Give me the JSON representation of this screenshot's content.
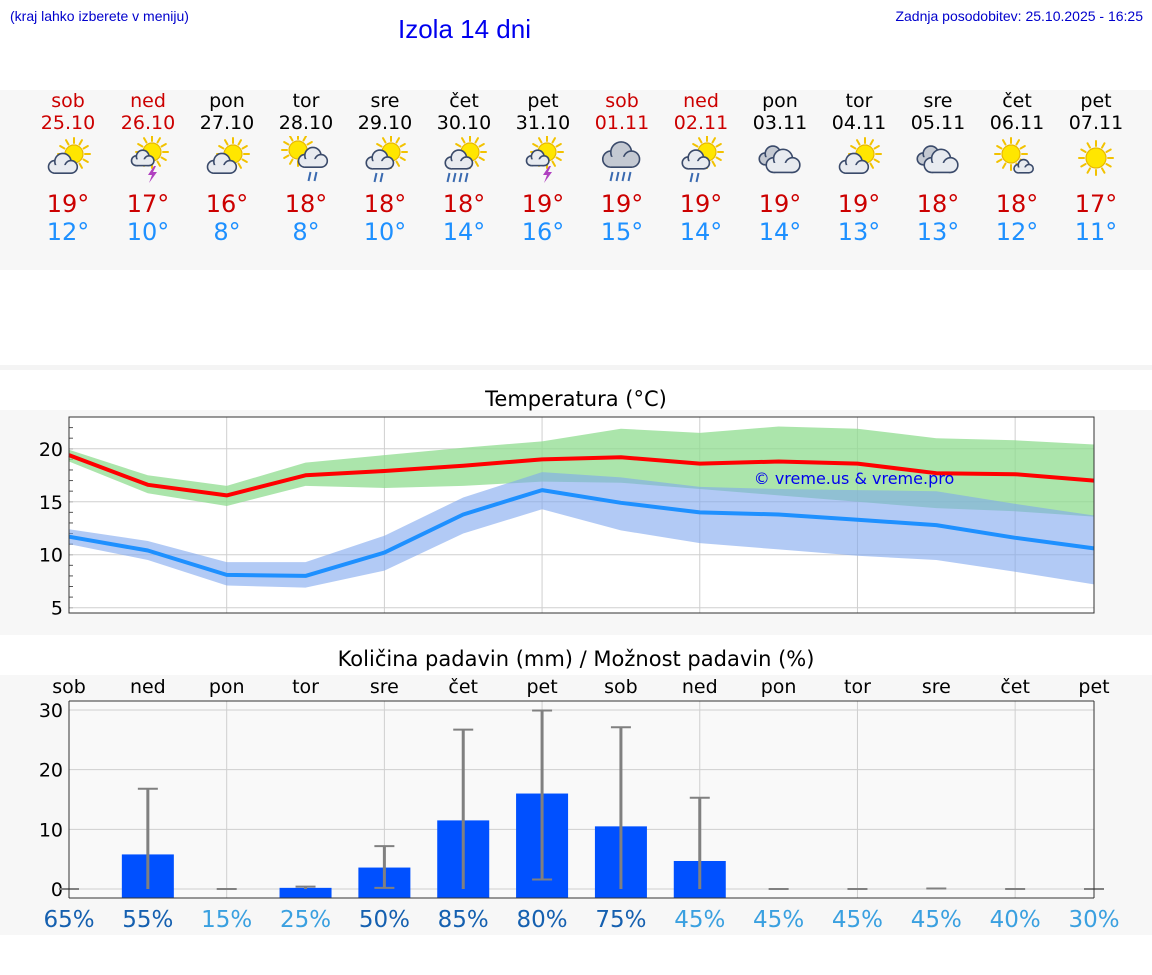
{
  "header": {
    "menu_hint": "(kraj lahko izberete v meniju)",
    "title": "Izola 14 dni",
    "updated": "Zadnja posodobitev: 25.10.2025 - 16:25"
  },
  "days": [
    {
      "name": "sob",
      "date": "25.10",
      "weekend": true,
      "icon": "partly-cloudy-sun-icon",
      "tmax": "19°",
      "tmin": "12°"
    },
    {
      "name": "ned",
      "date": "26.10",
      "weekend": true,
      "icon": "sun-thunderstorm-icon",
      "tmax": "17°",
      "tmin": "10°"
    },
    {
      "name": "pon",
      "date": "27.10",
      "weekend": false,
      "icon": "partly-cloudy-sun-icon",
      "tmax": "16°",
      "tmin": "8°"
    },
    {
      "name": "tor",
      "date": "28.10",
      "weekend": false,
      "icon": "sun-rain-cloud-icon",
      "tmax": "18°",
      "tmin": "8°"
    },
    {
      "name": "sre",
      "date": "29.10",
      "weekend": false,
      "icon": "sun-light-rain-icon",
      "tmax": "18°",
      "tmin": "10°"
    },
    {
      "name": "čet",
      "date": "30.10",
      "weekend": false,
      "icon": "sun-heavy-rain-icon",
      "tmax": "18°",
      "tmin": "14°"
    },
    {
      "name": "pet",
      "date": "31.10",
      "weekend": false,
      "icon": "sun-thunderstorm-icon",
      "tmax": "19°",
      "tmin": "16°"
    },
    {
      "name": "sob",
      "date": "01.11",
      "weekend": true,
      "icon": "heavy-rain-cloud-icon",
      "tmax": "19°",
      "tmin": "15°"
    },
    {
      "name": "ned",
      "date": "02.11",
      "weekend": true,
      "icon": "sun-light-rain-icon",
      "tmax": "19°",
      "tmin": "14°"
    },
    {
      "name": "pon",
      "date": "03.11",
      "weekend": false,
      "icon": "cloudy-icon",
      "tmax": "19°",
      "tmin": "14°"
    },
    {
      "name": "tor",
      "date": "04.11",
      "weekend": false,
      "icon": "partly-cloudy-sun-icon",
      "tmax": "19°",
      "tmin": "13°"
    },
    {
      "name": "sre",
      "date": "05.11",
      "weekend": false,
      "icon": "cloudy-icon",
      "tmax": "18°",
      "tmin": "13°"
    },
    {
      "name": "čet",
      "date": "06.11",
      "weekend": false,
      "icon": "mostly-sunny-icon",
      "tmax": "18°",
      "tmin": "12°"
    },
    {
      "name": "pet",
      "date": "07.11",
      "weekend": false,
      "icon": "sunny-icon",
      "tmax": "17°",
      "tmin": "11°"
    }
  ],
  "colors": {
    "weekend": "#cc0000",
    "tmax_line": "#ff0000",
    "tmin_line": "#1e90ff",
    "tmax_band": "#8fdc8f",
    "tmin_band": "#7fa6ee",
    "bar": "#0050ff",
    "error_bar": "#808080",
    "prob_high": "#1560b0",
    "prob_low": "#3aa0e0"
  },
  "chart_data": [
    {
      "type": "line",
      "title": "Temperatura (°C)",
      "x": [
        "25.10",
        "26.10",
        "27.10",
        "28.10",
        "29.10",
        "30.10",
        "31.10",
        "01.11",
        "02.11",
        "03.11",
        "04.11",
        "05.11",
        "06.11",
        "07.11"
      ],
      "ylim": [
        4.5,
        23.0
      ],
      "yticks": [
        5,
        10,
        15,
        20
      ],
      "grid": true,
      "watermark": "© vreme.us & vreme.pro",
      "series": [
        {
          "name": "max",
          "values": [
            19.4,
            16.6,
            15.6,
            17.5,
            17.9,
            18.4,
            19.0,
            19.2,
            18.6,
            18.8,
            18.6,
            17.7,
            17.6,
            17.0
          ],
          "band_low": [
            18.8,
            15.8,
            14.6,
            16.5,
            16.3,
            16.5,
            16.9,
            16.8,
            16.2,
            15.6,
            15.0,
            14.4,
            14.1,
            13.6
          ],
          "band_high": [
            19.9,
            17.5,
            16.5,
            18.7,
            19.4,
            20.1,
            20.7,
            21.9,
            21.5,
            22.1,
            21.9,
            21.0,
            20.8,
            20.4
          ]
        },
        {
          "name": "min",
          "values": [
            11.7,
            10.4,
            8.1,
            8.0,
            10.2,
            13.8,
            16.1,
            14.9,
            14.0,
            13.8,
            13.3,
            12.8,
            11.6,
            10.6
          ],
          "band_low": [
            11.0,
            9.5,
            7.1,
            6.9,
            8.5,
            12.0,
            14.3,
            12.3,
            11.1,
            10.5,
            9.9,
            9.5,
            8.4,
            7.2
          ],
          "band_high": [
            12.4,
            11.3,
            9.3,
            9.3,
            11.8,
            15.4,
            17.8,
            17.3,
            16.4,
            16.2,
            16.1,
            16.0,
            14.8,
            13.7
          ]
        }
      ]
    },
    {
      "type": "bar",
      "title": "Količina padavin (mm) / Možnost padavin (%)",
      "categories": [
        "sob",
        "ned",
        "pon",
        "tor",
        "sre",
        "čet",
        "pet",
        "sob",
        "ned",
        "pon",
        "tor",
        "sre",
        "čet",
        "pet"
      ],
      "ylim": [
        -1.5,
        31.5
      ],
      "yticks": [
        0,
        10,
        20,
        30
      ],
      "grid": true,
      "values": [
        0,
        5.8,
        0,
        0.2,
        3.6,
        11.5,
        16.0,
        10.5,
        4.7,
        0,
        0,
        0,
        0,
        0
      ],
      "error_low": [
        0,
        0,
        0,
        0,
        0.2,
        0,
        1.6,
        0,
        0,
        0,
        0,
        0,
        0,
        0
      ],
      "error_high": [
        0,
        16.8,
        0,
        0.4,
        7.2,
        26.7,
        29.9,
        27.1,
        15.3,
        0,
        0,
        0.1,
        0,
        0
      ],
      "probability": [
        "65%",
        "55%",
        "15%",
        "25%",
        "50%",
        "85%",
        "80%",
        "75%",
        "45%",
        "45%",
        "45%",
        "45%",
        "40%",
        "30%"
      ],
      "probability_values": [
        65,
        55,
        15,
        25,
        50,
        85,
        80,
        75,
        45,
        45,
        45,
        45,
        40,
        30
      ]
    }
  ]
}
